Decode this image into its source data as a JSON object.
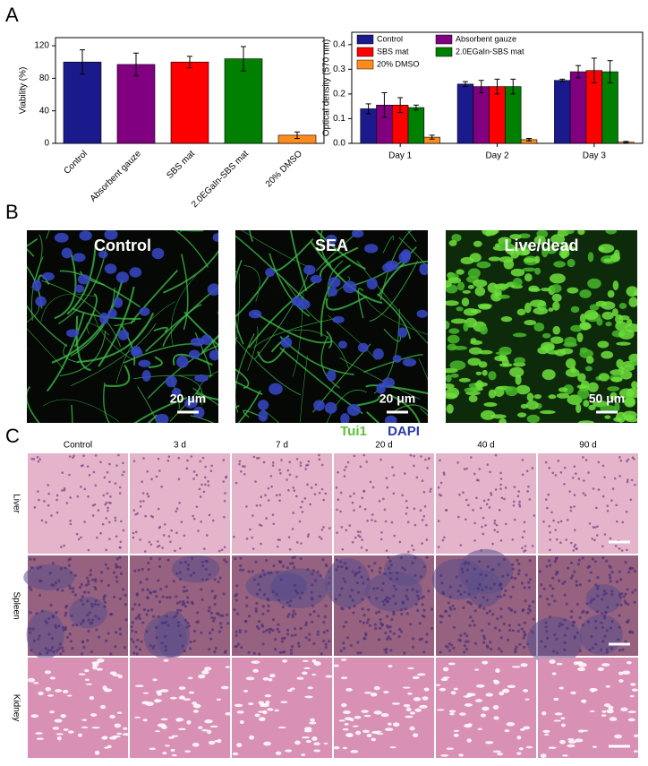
{
  "panels": [
    "A",
    "B",
    "C"
  ],
  "chart_data": [
    {
      "type": "bar",
      "ylabel": "Viability (%)",
      "categories": [
        "Control",
        "Absorbent gauze",
        "SBS mat",
        "2.0EGaIn-SBS mat",
        "20% DMSO"
      ],
      "values": [
        100,
        97,
        100,
        104,
        10
      ],
      "errors": [
        15,
        14,
        7,
        15,
        4
      ],
      "colors": [
        "#1a1a8c",
        "#800080",
        "#ff0000",
        "#008000",
        "#ff8c1a"
      ],
      "ylim": [
        0,
        130
      ],
      "yticks": [
        0,
        40,
        80,
        120
      ]
    },
    {
      "type": "bar",
      "ylabel": "Optical density (570 nm)",
      "categories": [
        "Day 1",
        "Day 2",
        "Day 3"
      ],
      "series": [
        {
          "name": "Control",
          "color": "#1a1a8c",
          "values": [
            0.14,
            0.24,
            0.255
          ],
          "errors": [
            0.02,
            0.01,
            0.005
          ]
        },
        {
          "name": "Absorbent gauze",
          "color": "#800080",
          "values": [
            0.155,
            0.23,
            0.29
          ],
          "errors": [
            0.05,
            0.025,
            0.025
          ]
        },
        {
          "name": "SBS mat",
          "color": "#ff0000",
          "values": [
            0.155,
            0.23,
            0.295
          ],
          "errors": [
            0.03,
            0.03,
            0.05
          ]
        },
        {
          "name": "2.0EGaIn-SBS mat",
          "color": "#008000",
          "values": [
            0.145,
            0.23,
            0.29
          ],
          "errors": [
            0.01,
            0.03,
            0.045
          ]
        },
        {
          "name": "20% DMSO",
          "color": "#ff8c1a",
          "values": [
            0.025,
            0.015,
            0.005
          ],
          "errors": [
            0.008,
            0.005,
            0.003
          ]
        }
      ],
      "ylim": [
        0,
        0.45
      ],
      "yticks": [
        {
          "value": 0,
          "label": "0.0"
        },
        0.1,
        0.2,
        0.3,
        0.4
      ],
      "legend": "top-left"
    }
  ],
  "microscopy": {
    "images": [
      {
        "label": "Control",
        "scale_bar": "20 μm"
      },
      {
        "label": "SEA",
        "scale_bar": "20 μm"
      },
      {
        "label": "Live/dead",
        "scale_bar": "50 μm"
      }
    ],
    "stain_labels": [
      "Tui1",
      "DAPI"
    ]
  },
  "histology": {
    "columns": [
      "Control",
      "3 d",
      "7 d",
      "20 d",
      "40 d",
      "90 d"
    ],
    "rows": [
      "Liver",
      "Spleen",
      "Kidney"
    ]
  }
}
